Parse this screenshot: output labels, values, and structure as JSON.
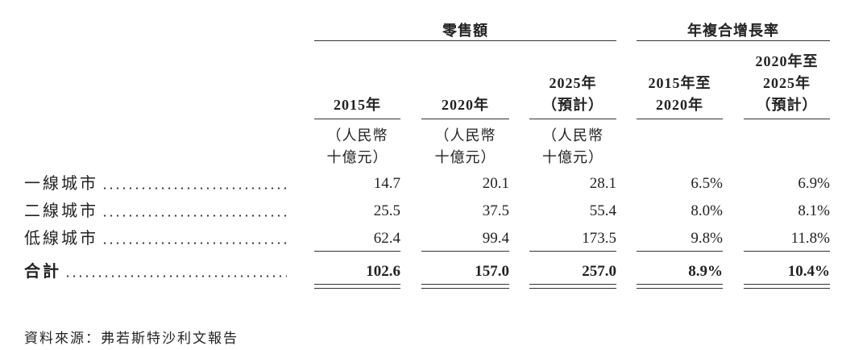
{
  "table": {
    "groups": [
      {
        "label": "零售額",
        "span": [
          0,
          2
        ]
      },
      {
        "label": "年複合增長率",
        "span": [
          3,
          4
        ]
      }
    ],
    "columns": [
      {
        "header": [
          "2015年"
        ],
        "unit": [
          "（人民幣",
          "十億元）"
        ]
      },
      {
        "header": [
          "2020年"
        ],
        "unit": [
          "（人民幣",
          "十億元）"
        ]
      },
      {
        "header": [
          "2025年",
          "（預計）"
        ],
        "unit": [
          "（人民幣",
          "十億元）"
        ]
      },
      {
        "header": [
          "2015年至",
          "2020年"
        ],
        "unit": []
      },
      {
        "header": [
          "2020年至",
          "2025年",
          "（預計）"
        ],
        "unit": []
      }
    ],
    "rows": [
      {
        "label": "一線城市",
        "cells": [
          "14.7",
          "20.1",
          "28.1",
          "6.5%",
          "6.9%"
        ]
      },
      {
        "label": "二線城市",
        "cells": [
          "25.5",
          "37.5",
          "55.4",
          "8.0%",
          "8.1%"
        ]
      },
      {
        "label": "低線城市",
        "cells": [
          "62.4",
          "99.4",
          "173.5",
          "9.8%",
          "11.8%"
        ]
      }
    ],
    "total": {
      "label": "合計",
      "cells": [
        "102.6",
        "157.0",
        "257.0",
        "8.9%",
        "10.4%"
      ]
    }
  },
  "source": "資料來源：弗若斯特沙利文報告"
}
